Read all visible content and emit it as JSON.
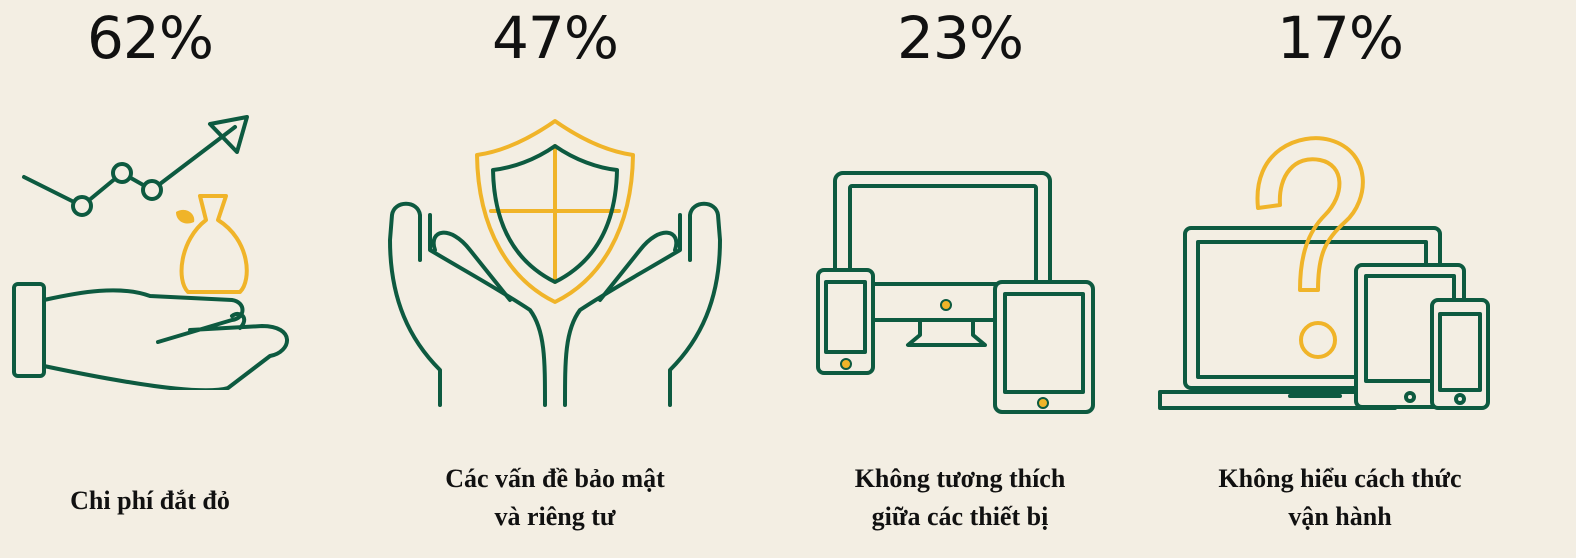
{
  "items": [
    {
      "percent": "62%",
      "label_lines": [
        "Chi phí đắt đỏ"
      ],
      "icon": "hand-money-growth-icon"
    },
    {
      "percent": "47%",
      "label_lines": [
        "Các vấn đề bảo mật",
        "và riêng tư"
      ],
      "icon": "hands-shield-icon"
    },
    {
      "percent": "23%",
      "label_lines": [
        "Không tương thích",
        "giữa các thiết bị"
      ],
      "icon": "multiple-devices-icon"
    },
    {
      "percent": "17%",
      "label_lines": [
        "Không hiểu cách thức",
        "vận hành"
      ],
      "icon": "devices-question-icon"
    }
  ],
  "colors": {
    "background": "#f3eee3",
    "primary": "#0d5a40",
    "accent": "#f0b429",
    "text": "#111111"
  }
}
